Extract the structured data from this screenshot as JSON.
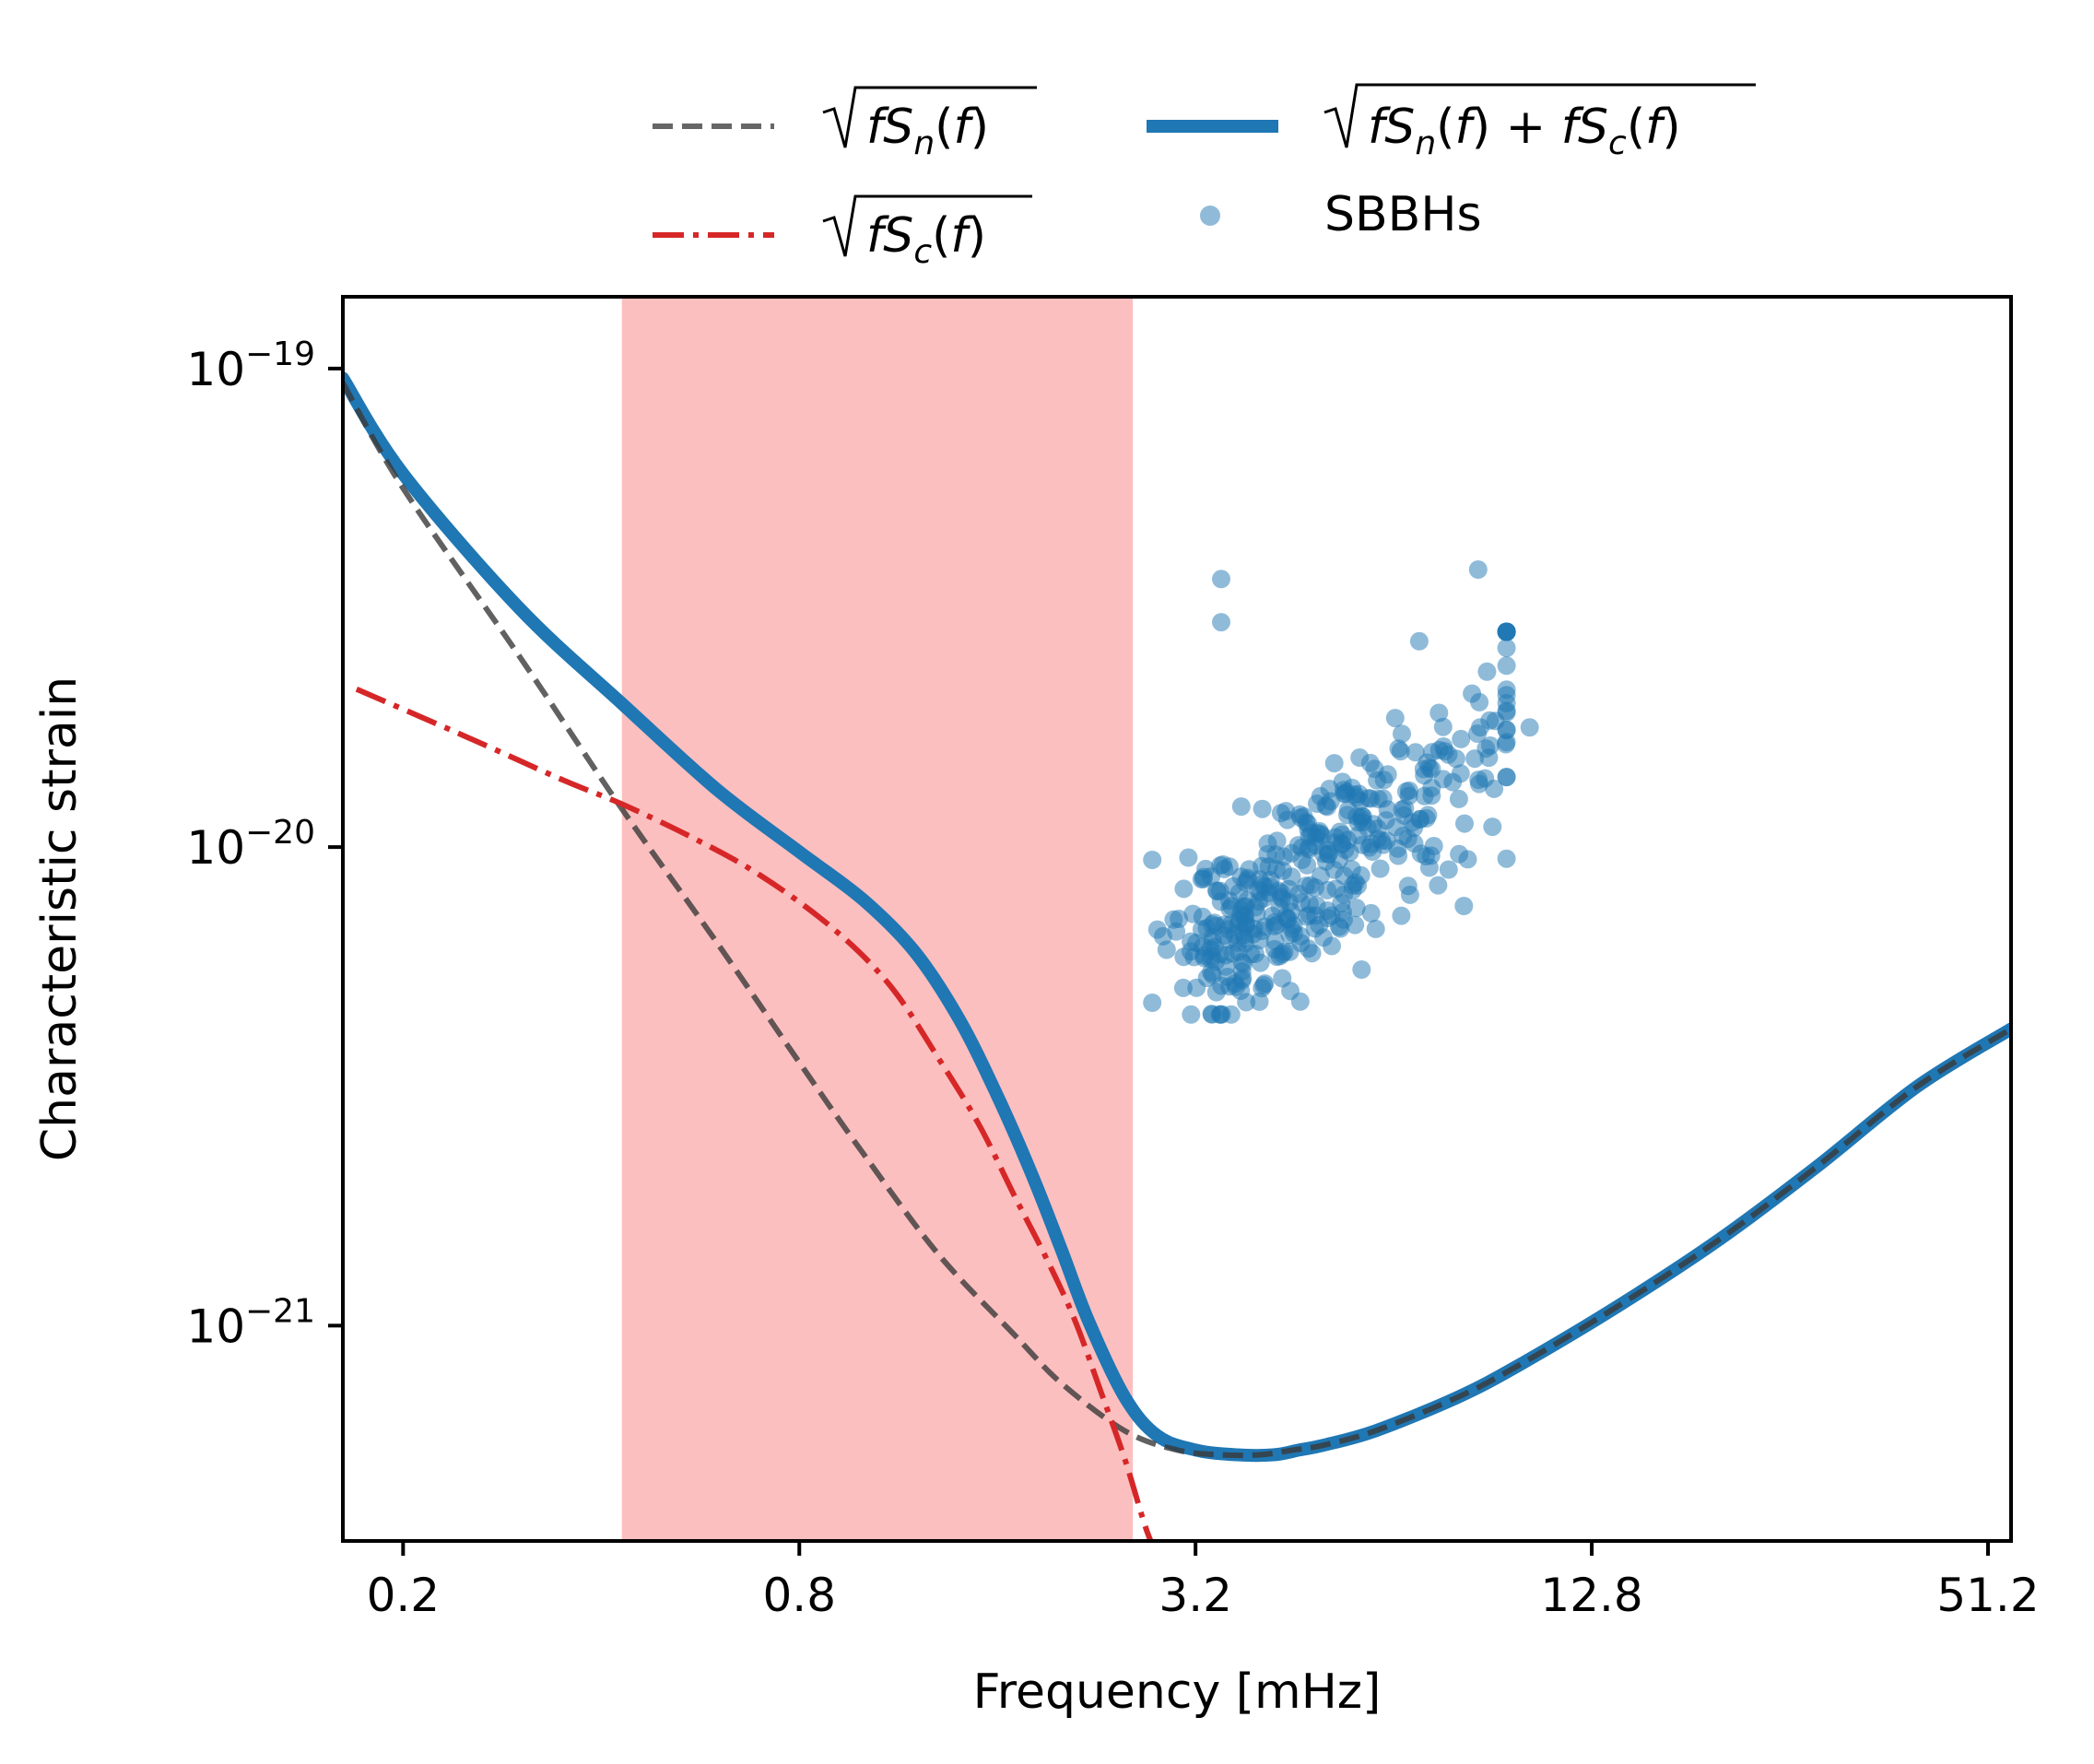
{
  "chart_data": {
    "type": "line",
    "title": "",
    "xlabel": "Frequency [mHz]",
    "ylabel": "Characteristic strain",
    "xscale": "log2",
    "yscale": "log10",
    "xlim": [
      0.162,
      55.5
    ],
    "ylim_exp": [
      -21.45,
      -18.85
    ],
    "x_ticks": [
      0.2,
      0.8,
      3.2,
      12.8,
      51.2
    ],
    "x_tick_labels": [
      "0.2",
      "0.8",
      "3.2",
      "12.8",
      "51.2"
    ],
    "y_ticks_exp": [
      -19,
      -20,
      -21
    ],
    "y_tick_labels": [
      {
        "base": "10",
        "exp": "−19"
      },
      {
        "base": "10",
        "exp": "−20"
      },
      {
        "base": "10",
        "exp": "−21"
      }
    ],
    "shaded_band": {
      "x_range": [
        0.43,
        2.57
      ],
      "color": "#fcbfbf"
    },
    "legend": {
      "placement": "above-top",
      "entries": [
        {
          "label": "√(fS_n(f))",
          "style": "dashed",
          "color": "#666666"
        },
        {
          "label": "√(fS_c(f))",
          "style": "dashdot",
          "color": "#d62728"
        },
        {
          "label": "√(fS_n(f) + fS_c(f))",
          "style": "solid",
          "color": "#1f77b4"
        },
        {
          "label": "SBBHs",
          "style": "points",
          "color": "#1f77b4"
        }
      ]
    },
    "series": [
      {
        "name": "√(fS_n(f))",
        "style": "dashed",
        "color": "#555555",
        "x": [
          0.162,
          0.2,
          0.3,
          0.43,
          0.6,
          0.8,
          1.0,
          1.3,
          1.7,
          2.0,
          2.5,
          3.0,
          3.5,
          4.0,
          4.5,
          5.0,
          6.0,
          8.0,
          10.0,
          14.0,
          20.0,
          28.0,
          40.0,
          55.5
        ],
        "y_log10": [
          -19.03,
          -19.25,
          -19.6,
          -19.92,
          -20.2,
          -20.45,
          -20.64,
          -20.85,
          -21.02,
          -21.12,
          -21.22,
          -21.26,
          -21.27,
          -21.27,
          -21.26,
          -21.25,
          -21.22,
          -21.15,
          -21.08,
          -20.96,
          -20.82,
          -20.67,
          -20.5,
          -20.38
        ]
      },
      {
        "name": "√(fS_c(f))",
        "style": "dashdot",
        "color": "#d62728",
        "x": [
          0.17,
          0.25,
          0.35,
          0.43,
          0.55,
          0.7,
          0.9,
          1.1,
          1.3,
          1.5,
          1.7,
          1.9,
          2.1,
          2.3,
          2.5,
          2.7,
          2.85
        ],
        "y_log10": [
          -19.67,
          -19.77,
          -19.86,
          -19.91,
          -19.98,
          -20.06,
          -20.17,
          -20.29,
          -20.44,
          -20.58,
          -20.73,
          -20.86,
          -20.99,
          -21.14,
          -21.28,
          -21.43,
          -21.5
        ]
      },
      {
        "name": "√(fS_n(f) + fS_c(f))",
        "style": "solid",
        "color": "#1f77b4",
        "x": [
          0.162,
          0.2,
          0.3,
          0.43,
          0.6,
          0.8,
          1.0,
          1.2,
          1.4,
          1.6,
          1.8,
          2.0,
          2.2,
          2.5,
          2.8,
          3.2,
          3.7,
          4.2,
          4.6,
          5.0,
          6.0,
          8.0,
          10.0,
          14.0,
          20.0,
          28.0,
          40.0,
          55.5
        ],
        "y_log10": [
          -19.02,
          -19.22,
          -19.5,
          -19.7,
          -19.88,
          -20.01,
          -20.11,
          -20.22,
          -20.36,
          -20.52,
          -20.68,
          -20.84,
          -20.99,
          -21.15,
          -21.23,
          -21.26,
          -21.27,
          -21.27,
          -21.26,
          -21.25,
          -21.22,
          -21.15,
          -21.08,
          -20.96,
          -20.82,
          -20.67,
          -20.5,
          -20.38
        ]
      }
    ],
    "scatter": {
      "name": "SBBHs",
      "color": "#1f77b4",
      "alpha": 0.5,
      "count": 400,
      "x_range": [
        2.75,
        9.5
      ],
      "y_log10_range": [
        -20.35,
        -19.55
      ],
      "dense_center": {
        "x": 3.25,
        "y_log10": -20.22
      },
      "outliers": [
        {
          "x": 8.6,
          "y_log10": -19.42
        },
        {
          "x": 3.5,
          "y_log10": -19.44
        },
        {
          "x": 3.5,
          "y_log10": -19.53
        },
        {
          "x": 10.3,
          "y_log10": -19.75
        },
        {
          "x": 7.0,
          "y_log10": -19.57
        }
      ]
    }
  }
}
